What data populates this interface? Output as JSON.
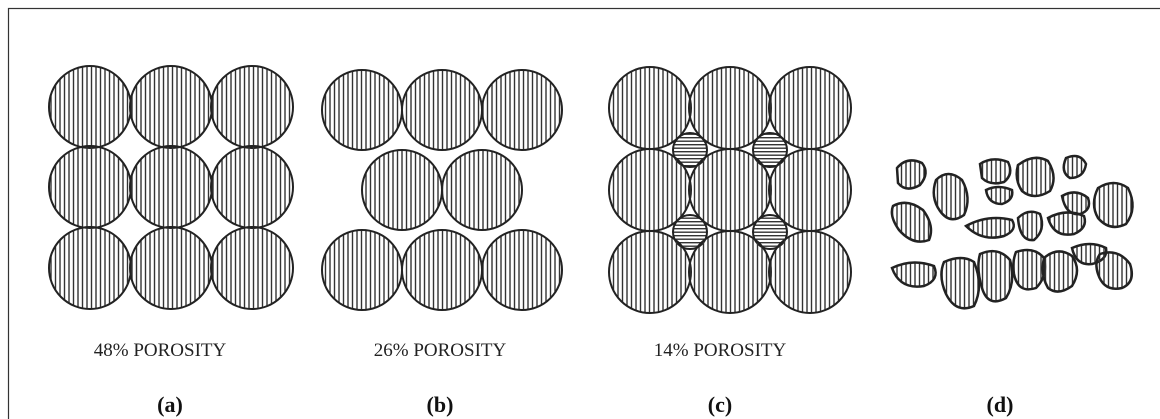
{
  "panels": [
    {
      "caption": "48% POROSITY",
      "label": "(a)"
    },
    {
      "caption": "26% POROSITY",
      "label": "(b)"
    },
    {
      "caption": "14% POROSITY",
      "label": "(c)"
    },
    {
      "label": "(d)"
    }
  ]
}
